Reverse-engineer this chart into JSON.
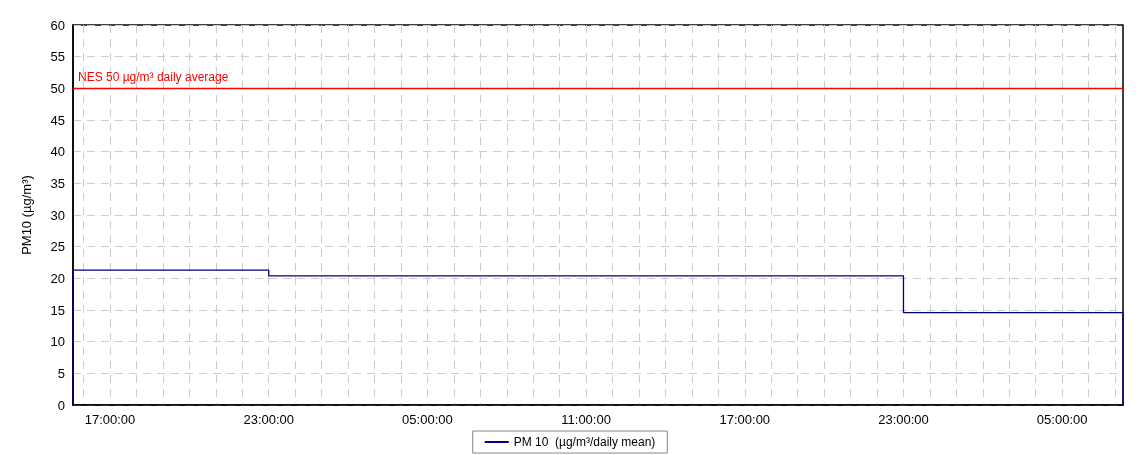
{
  "chart_data": {
    "type": "step",
    "ylabel": "PM10 (µg/m³)",
    "series": [
      {
        "name": "PM 10  (µg/m³/daily mean)",
        "color": "#000080",
        "x": [
          "2000-01-01T15:36",
          "2000-01-01T15:36",
          "2000-01-01T23:00",
          "2000-01-02T23:00",
          "2000-01-03T07:18",
          "2000-01-03T07:18"
        ],
        "values": [
          0,
          21.3,
          20.4,
          14.6,
          14.6,
          0
        ]
      }
    ],
    "xlim": [
      "2000-01-01T15:36",
      "2000-01-03T07:18"
    ],
    "xticks": [
      {
        "value": "2000-01-01T16:00",
        "label": null
      },
      {
        "value": "2000-01-01T17:00",
        "label": "17:00:00"
      },
      {
        "value": "2000-01-01T18:00",
        "label": null
      },
      {
        "value": "2000-01-01T19:00",
        "label": null
      },
      {
        "value": "2000-01-01T20:00",
        "label": null
      },
      {
        "value": "2000-01-01T21:00",
        "label": null
      },
      {
        "value": "2000-01-01T22:00",
        "label": null
      },
      {
        "value": "2000-01-01T23:00",
        "label": "23:00:00"
      },
      {
        "value": "2000-01-02T00:00",
        "label": null
      },
      {
        "value": "2000-01-02T01:00",
        "label": null
      },
      {
        "value": "2000-01-02T02:00",
        "label": null
      },
      {
        "value": "2000-01-02T03:00",
        "label": null
      },
      {
        "value": "2000-01-02T04:00",
        "label": null
      },
      {
        "value": "2000-01-02T05:00",
        "label": "05:00:00"
      },
      {
        "value": "2000-01-02T06:00",
        "label": null
      },
      {
        "value": "2000-01-02T07:00",
        "label": null
      },
      {
        "value": "2000-01-02T08:00",
        "label": null
      },
      {
        "value": "2000-01-02T09:00",
        "label": null
      },
      {
        "value": "2000-01-02T10:00",
        "label": null
      },
      {
        "value": "2000-01-02T11:00",
        "label": "11:00:00"
      },
      {
        "value": "2000-01-02T12:00",
        "label": null
      },
      {
        "value": "2000-01-02T13:00",
        "label": null
      },
      {
        "value": "2000-01-02T14:00",
        "label": null
      },
      {
        "value": "2000-01-02T15:00",
        "label": null
      },
      {
        "value": "2000-01-02T16:00",
        "label": null
      },
      {
        "value": "2000-01-02T17:00",
        "label": "17:00:00"
      },
      {
        "value": "2000-01-02T18:00",
        "label": null
      },
      {
        "value": "2000-01-02T19:00",
        "label": null
      },
      {
        "value": "2000-01-02T20:00",
        "label": null
      },
      {
        "value": "2000-01-02T21:00",
        "label": null
      },
      {
        "value": "2000-01-02T22:00",
        "label": null
      },
      {
        "value": "2000-01-02T23:00",
        "label": "23:00:00"
      },
      {
        "value": "2000-01-03T00:00",
        "label": null
      },
      {
        "value": "2000-01-03T01:00",
        "label": null
      },
      {
        "value": "2000-01-03T02:00",
        "label": null
      },
      {
        "value": "2000-01-03T03:00",
        "label": null
      },
      {
        "value": "2000-01-03T04:00",
        "label": null
      },
      {
        "value": "2000-01-03T05:00",
        "label": "05:00:00"
      },
      {
        "value": "2000-01-03T06:00",
        "label": null
      },
      {
        "value": "2000-01-03T07:00",
        "label": null
      }
    ],
    "ylim": [
      0,
      60
    ],
    "yticks": [
      0,
      5,
      10,
      15,
      20,
      25,
      30,
      35,
      40,
      45,
      50,
      55,
      60
    ],
    "ref_lines": [
      {
        "axis": "y",
        "value": 50,
        "label": "NES 50 µg/m³ daily average",
        "color": "#ff0000"
      }
    ],
    "grid": true,
    "legend": "bottom",
    "marker": "none",
    "line_style": "solid"
  }
}
